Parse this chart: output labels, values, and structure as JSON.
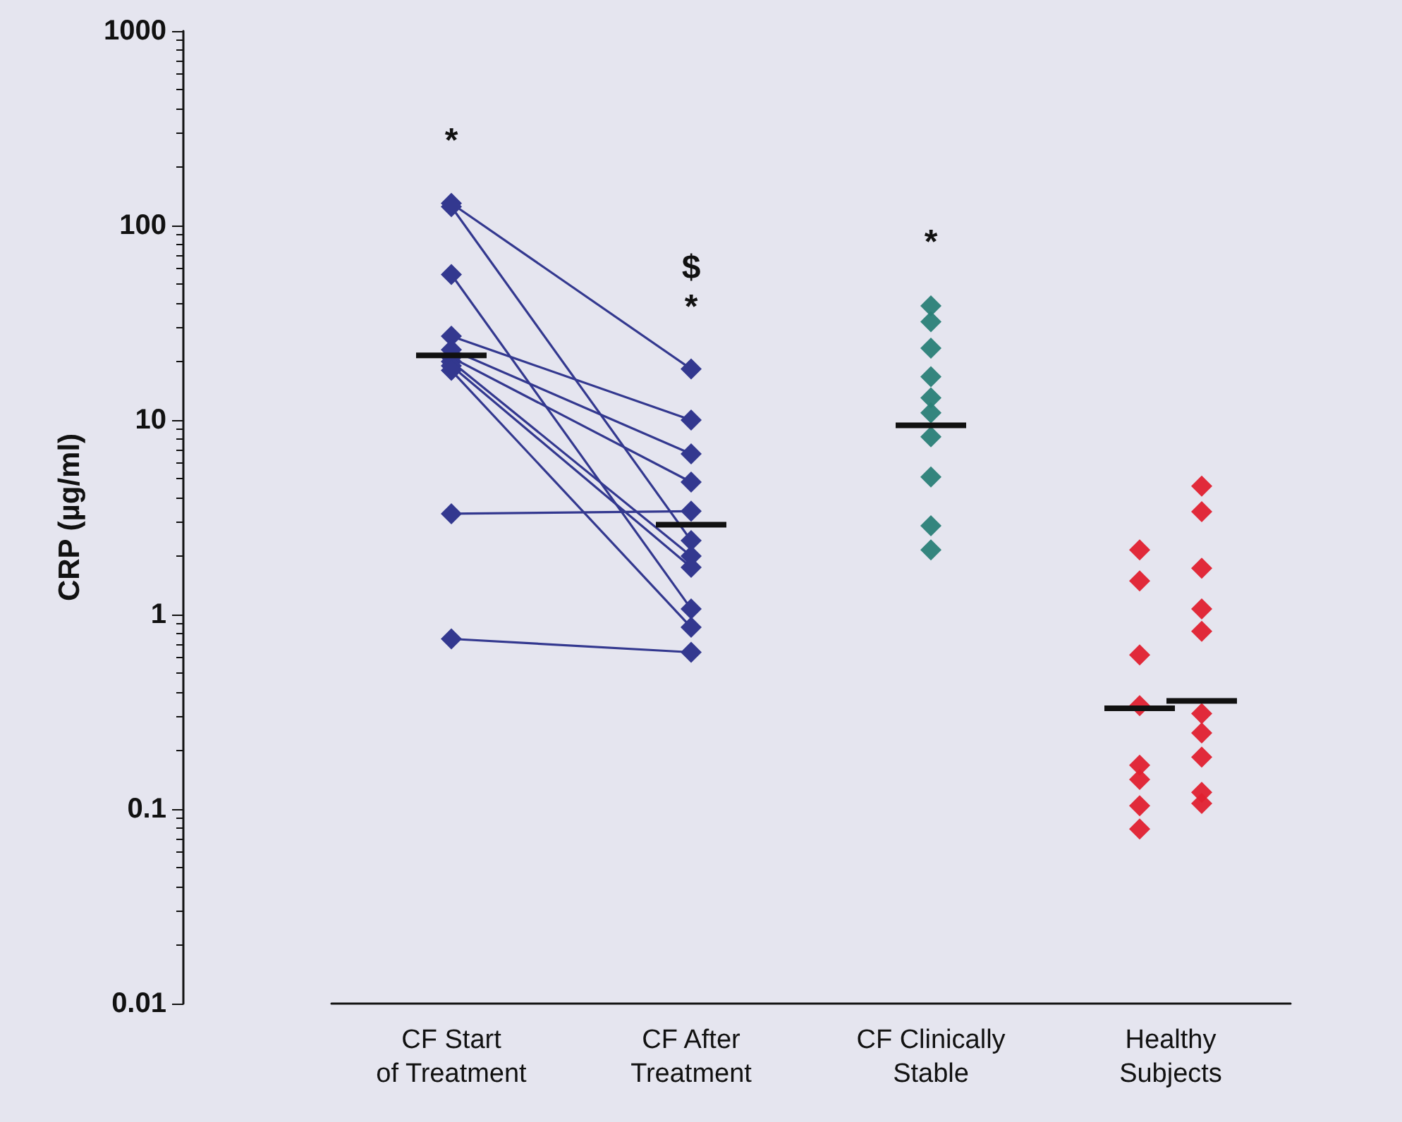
{
  "chart_data": {
    "type": "scatter",
    "ylabel": "CRP (µg/ml)",
    "categories": [
      "CF Start of Treatment",
      "CF After Treatment",
      "CF Clinically Stable",
      "Healthy Subjects"
    ],
    "log": "y",
    "ylim": [
      0.01,
      1000
    ],
    "yticks": [
      0.01,
      0.1,
      1,
      10,
      100,
      1000
    ],
    "grid": false,
    "marker": "diamond",
    "series": [
      {
        "type": "line",
        "color": "#33388f",
        "x": [
          "CF Start of Treatment",
          "CF After Treatment"
        ],
        "values": [
          130,
          18.3
        ]
      },
      {
        "type": "line",
        "color": "#33388f",
        "x": [
          "CF Start of Treatment",
          "CF After Treatment"
        ],
        "values": [
          125,
          2.4
        ]
      },
      {
        "type": "line",
        "color": "#33388f",
        "x": [
          "CF Start of Treatment",
          "CF After Treatment"
        ],
        "values": [
          56,
          1.07
        ]
      },
      {
        "type": "line",
        "color": "#33388f",
        "x": [
          "CF Start of Treatment",
          "CF After Treatment"
        ],
        "values": [
          27,
          10
        ]
      },
      {
        "type": "line",
        "color": "#33388f",
        "x": [
          "CF Start of Treatment",
          "CF After Treatment"
        ],
        "values": [
          23,
          6.7
        ]
      },
      {
        "type": "line",
        "color": "#33388f",
        "x": [
          "CF Start of Treatment",
          "CF After Treatment"
        ],
        "values": [
          21,
          4.8
        ]
      },
      {
        "type": "line",
        "color": "#33388f",
        "x": [
          "CF Start of Treatment",
          "CF After Treatment"
        ],
        "values": [
          20,
          2.0
        ]
      },
      {
        "type": "line",
        "color": "#33388f",
        "x": [
          "CF Start of Treatment",
          "CF After Treatment"
        ],
        "values": [
          19,
          1.75
        ]
      },
      {
        "type": "line",
        "color": "#33388f",
        "x": [
          "CF Start of Treatment",
          "CF After Treatment"
        ],
        "values": [
          18,
          0.86
        ]
      },
      {
        "type": "line",
        "color": "#33388f",
        "x": [
          "CF Start of Treatment",
          "CF After Treatment"
        ],
        "values": [
          3.3,
          3.4
        ]
      },
      {
        "type": "line",
        "color": "#33388f",
        "x": [
          "CF Start of Treatment",
          "CF After Treatment"
        ],
        "values": [
          0.75,
          0.64
        ]
      },
      {
        "color": "#2a8077",
        "x": [
          "CF Clinically Stable",
          "CF Clinically Stable",
          "CF Clinically Stable",
          "CF Clinically Stable",
          "CF Clinically Stable",
          "CF Clinically Stable",
          "CF Clinically Stable",
          "CF Clinically Stable",
          "CF Clinically Stable",
          "CF Clinically Stable"
        ],
        "values": [
          38.6,
          32,
          23.4,
          16.7,
          13,
          10.9,
          8.2,
          5.1,
          2.86,
          2.15
        ]
      },
      {
        "color": "#e0202f",
        "x": [
          "Healthy Subjects",
          "Healthy Subjects",
          "Healthy Subjects",
          "Healthy Subjects",
          "Healthy Subjects",
          "Healthy Subjects",
          "Healthy Subjects",
          "Healthy Subjects"
        ],
        "values": [
          2.15,
          1.49,
          0.62,
          0.34,
          0.168,
          0.142,
          0.104,
          0.079
        ]
      },
      {
        "color": "#e0202f",
        "x": [
          "Healthy Subjects",
          "Healthy Subjects",
          "Healthy Subjects",
          "Healthy Subjects",
          "Healthy Subjects",
          "Healthy Subjects",
          "Healthy Subjects",
          "Healthy Subjects",
          "Healthy Subjects",
          "Healthy Subjects"
        ],
        "values": [
          4.57,
          3.38,
          1.73,
          1.07,
          0.82,
          0.31,
          0.246,
          0.185,
          0.122,
          0.107
        ]
      },
      {
        "type": "box",
        "color": "#111111",
        "boxes": [
          {
            "low": 21.5,
            "q1": 21.5,
            "median": 21.5,
            "q3": 21.5,
            "high": 21.5
          },
          {
            "low": 2.9,
            "q1": 2.9,
            "median": 2.9,
            "q3": 2.9,
            "high": 2.9
          },
          {
            "low": 9.4,
            "q1": 9.4,
            "median": 9.4,
            "q3": 9.4,
            "high": 9.4
          },
          {
            "low": 0.33,
            "q1": 0.33,
            "median": 0.33,
            "q3": 0.33,
            "high": 0.33
          }
        ]
      },
      {
        "type": "box",
        "color": "#111111",
        "boxes": [
          null,
          null,
          null,
          {
            "low": 0.36,
            "q1": 0.36,
            "median": 0.36,
            "q3": 0.36,
            "high": 0.36
          }
        ]
      }
    ],
    "annotations": [
      "*",
      "$",
      "*",
      "*"
    ]
  }
}
